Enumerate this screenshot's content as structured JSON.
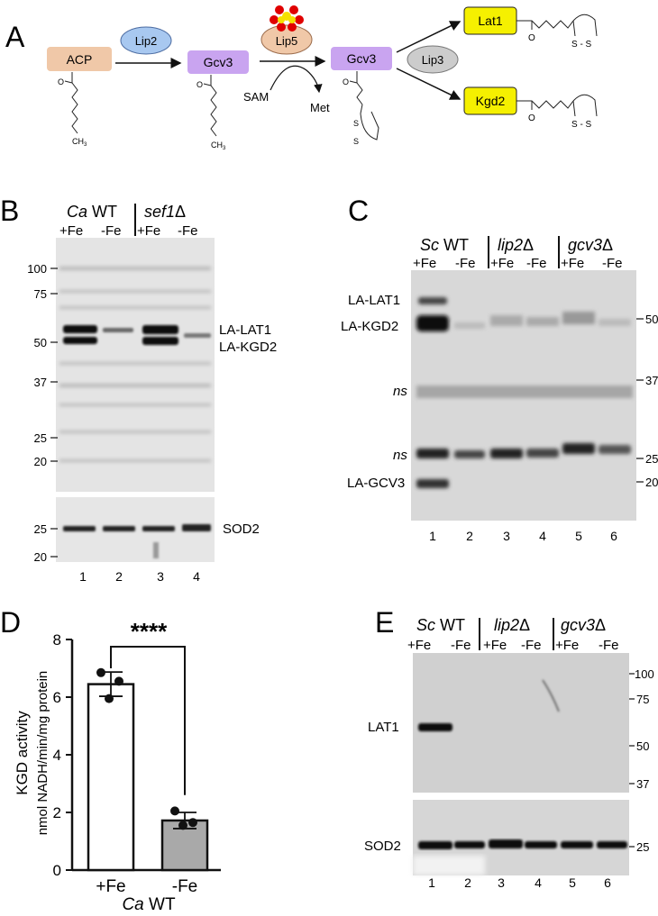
{
  "panel_a": {
    "letter": "A",
    "acp": "ACP",
    "lip2": "Lip2",
    "gcv3_1": "Gcv3",
    "lip5": "Lip5",
    "gcv3_2": "Gcv3",
    "lip3": "Lip3",
    "lat1": "Lat1",
    "kgd2": "Kgd2",
    "sam": "SAM",
    "met": "Met",
    "ch3": "CH",
    "ch3_sub": "3",
    "o": "O",
    "s_s": "S - S",
    "s": "S",
    "colors": {
      "acp": "#f0c8a8",
      "gcv3": "#c9a4f0",
      "lip2": "#a8c8f0",
      "lip5": "#f0c8a8",
      "lip3": "#cccccc",
      "lat": "#f5f000",
      "cluster_red": "#e00000",
      "cluster_yellow": "#f5e000"
    }
  },
  "panel_b": {
    "letter": "B",
    "strain_ca": "Ca",
    "strain_wt": " WT",
    "strain_sef1": "sef1",
    "delta": "Δ",
    "fe_plus": "+Fe",
    "fe_minus": "-Fe",
    "markers": [
      "100",
      "75",
      "50",
      "37",
      "25",
      "20"
    ],
    "band_labels": [
      "LA-LAT1",
      "LA-KGD2"
    ],
    "sod2_markers": [
      "25",
      "20"
    ],
    "sod2_label": "SOD2",
    "lanes": [
      "1",
      "2",
      "3",
      "4"
    ]
  },
  "panel_c": {
    "letter": "C",
    "strain_sc": "Sc",
    "strain_wt": " WT",
    "lip2": "lip2",
    "gcv3": "gcv3",
    "delta": "Δ",
    "fe_plus": "+Fe",
    "fe_minus": "-Fe",
    "left_labels": [
      "LA-LAT1",
      "LA-KGD2",
      "ns",
      "ns",
      "LA-GCV3"
    ],
    "markers": [
      "50",
      "37",
      "25",
      "20"
    ],
    "lanes": [
      "1",
      "2",
      "3",
      "4",
      "5",
      "6"
    ]
  },
  "panel_d": {
    "letter": "D",
    "significance": "****",
    "ylabel_1": "KGD  activity",
    "ylabel_2": "nmol NADH/min/mg protein",
    "xlabel_strain": "Ca",
    "xlabel_wt": " WT"
  },
  "panel_e": {
    "letter": "E",
    "strain_sc": "Sc",
    "strain_wt": " WT",
    "lip2": "lip2",
    "gcv3": "gcv3",
    "delta": "Δ",
    "fe_plus": "+Fe",
    "fe_minus": "-Fe",
    "lat1_label": "LAT1",
    "sod2_label": "SOD2",
    "markers": [
      "100",
      "75",
      "50",
      "37"
    ],
    "sod2_marker": "25",
    "lanes": [
      "1",
      "2",
      "3",
      "4",
      "5",
      "6"
    ]
  },
  "chart_data": {
    "type": "bar",
    "categories": [
      "+Fe",
      "-Fe"
    ],
    "values": [
      6.45,
      1.72
    ],
    "errors": [
      0.42,
      0.28
    ],
    "points": [
      [
        6.85,
        6.55,
        5.95
      ],
      [
        2.05,
        1.65,
        1.55
      ]
    ],
    "bar_colors": [
      "#ffffff",
      "#a9a9a9"
    ],
    "xlabel": "Ca WT",
    "ylabel": "KGD  activity nmol NADH/min/mg protein",
    "ylim": [
      0,
      8
    ],
    "yticks": [
      0,
      2,
      4,
      6,
      8
    ],
    "grid": false,
    "annotation": "****"
  }
}
